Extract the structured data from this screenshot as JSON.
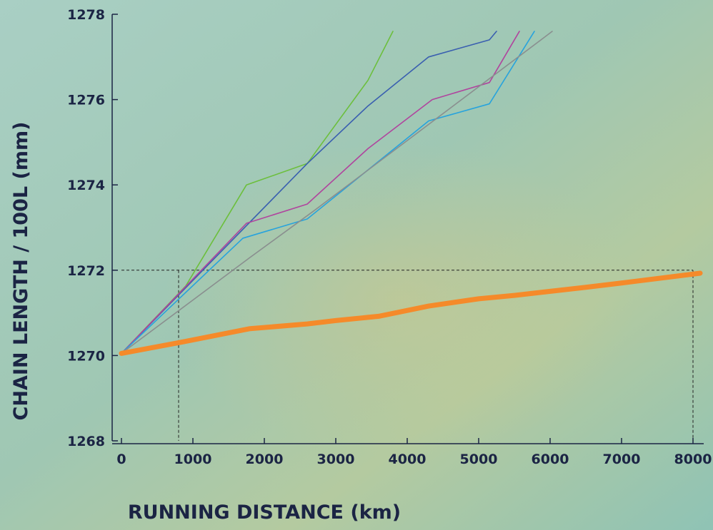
{
  "chart_data": {
    "type": "line",
    "x_label": "RUNNING DISTANCE (km)",
    "y_label": "CHAIN LENGTH / 100L (mm)",
    "xlim": [
      -130,
      8150
    ],
    "ylim": [
      1268,
      1278
    ],
    "xticks": [
      0,
      1000,
      2000,
      3000,
      4000,
      5000,
      6000,
      7000,
      8000
    ],
    "yticks": [
      1268,
      1270,
      1272,
      1274,
      1276,
      1278
    ],
    "reference_lines": {
      "y": 1272,
      "x": [
        800,
        8000
      ]
    },
    "series": [
      {
        "color": "#6cbf3c",
        "width": 1.6,
        "x": [
          0,
          900,
          1750,
          2600,
          3450,
          3800
        ],
        "values": [
          1270.05,
          1271.63,
          1274.0,
          1274.5,
          1276.45,
          1277.6
        ]
      },
      {
        "color": "#3a5fb0",
        "width": 1.6,
        "x": [
          0,
          2600,
          3450,
          4300,
          5150,
          5250
        ],
        "values": [
          1270.05,
          1274.5,
          1275.85,
          1277.0,
          1277.4,
          1277.6
        ]
      },
      {
        "color": "#b0449e",
        "width": 1.6,
        "x": [
          0,
          1750,
          2600,
          3450,
          4350,
          5150,
          5570
        ],
        "values": [
          1270.05,
          1273.1,
          1273.55,
          1274.85,
          1276.0,
          1276.4,
          1277.6
        ]
      },
      {
        "color": "#27a3dd",
        "width": 1.6,
        "x": [
          0,
          1700,
          2600,
          4300,
          5150,
          5780
        ],
        "values": [
          1270.05,
          1272.75,
          1273.2,
          1275.5,
          1275.9,
          1277.6
        ]
      },
      {
        "color": "#8a8f8f",
        "width": 1.6,
        "x": [
          0,
          1800,
          2700,
          6030
        ],
        "values": [
          1270.05,
          1272.3,
          1273.4,
          1277.6
        ]
      },
      {
        "color": "#f58a2a",
        "width": 7,
        "x": [
          0,
          800,
          1800,
          2600,
          3000,
          3600,
          4300,
          5000,
          5500,
          6500,
          7000,
          8100
        ],
        "values": [
          1270.05,
          1270.3,
          1270.63,
          1270.74,
          1270.82,
          1270.92,
          1271.16,
          1271.33,
          1271.41,
          1271.6,
          1271.7,
          1271.93
        ]
      }
    ]
  }
}
